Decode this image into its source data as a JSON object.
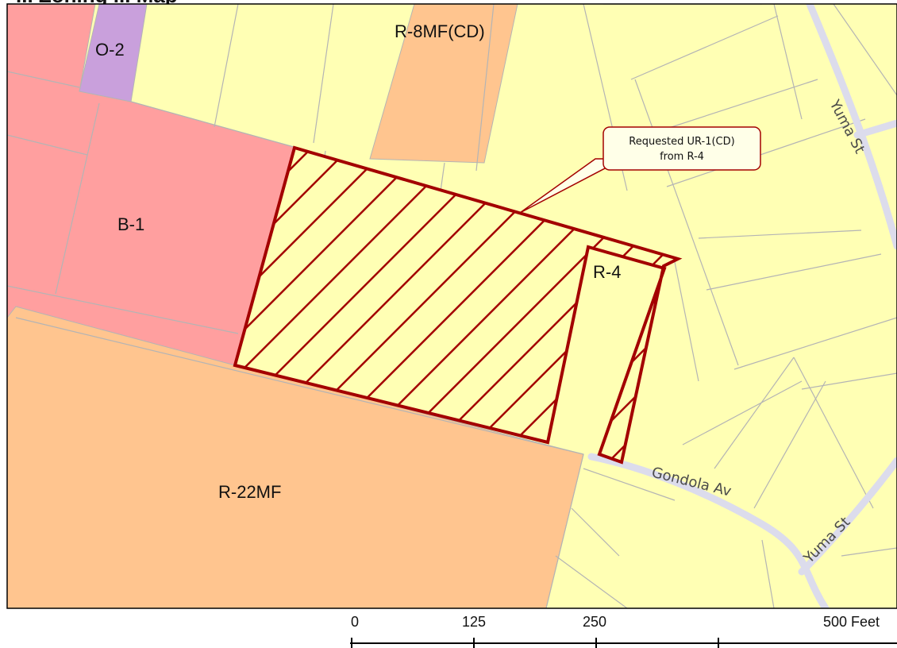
{
  "colors": {
    "residential_single": "#FFFFB4",
    "business": "#FF9F9F",
    "office": "#C9A0DC",
    "multi_family": "#FFC58F",
    "parcel_line": "#b4b4b4",
    "street": "#dcdcec",
    "rezoning_outline": "#A30000",
    "callout_fill": "#FFFFE8"
  },
  "title_partial": "... Zoning ... Map",
  "zones": {
    "o2": "O-2",
    "b1": "B-1",
    "r8mf": "R-8MF(CD)",
    "r22mf": "R-22MF",
    "r4": "R-4"
  },
  "streets": {
    "gondola": "Gondola Av",
    "yuma_top": "Yuma St",
    "yuma_bottom": "Yuma St"
  },
  "callout": {
    "line1": "Requested UR-1(CD)",
    "line2": "from R-4"
  },
  "scale_bar": {
    "ticks": [
      "0",
      "125",
      "250",
      "500 Feet"
    ]
  }
}
